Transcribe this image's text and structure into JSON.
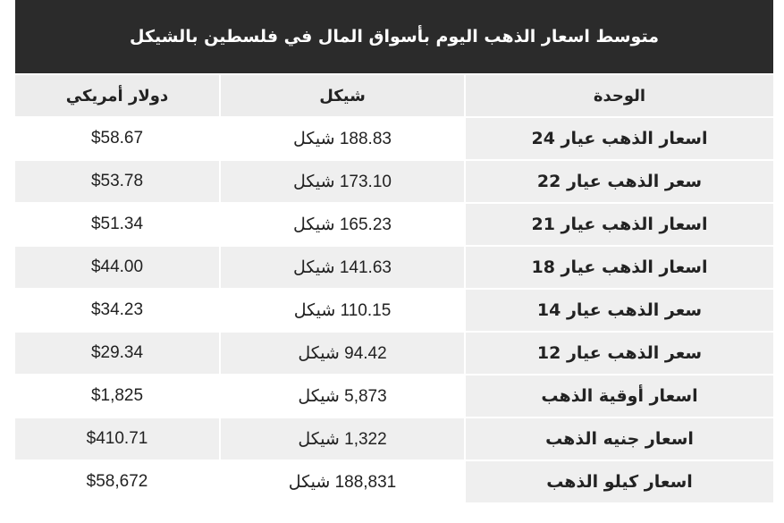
{
  "title": "متوسط اسعار الذهب اليوم بأسواق المال في فلسطين بالشيكل",
  "headers": {
    "unit": "الوحدة",
    "shekel": "شيكل",
    "usd": "دولار أمريكي"
  },
  "rows": [
    {
      "unit": "اسعار الذهب عيار 24",
      "shekel": "188.83 شيكل",
      "usd": "$58.67"
    },
    {
      "unit": "سعر الذهب عيار 22",
      "shekel": "173.10 شيكل",
      "usd": "$53.78"
    },
    {
      "unit": "اسعار الذهب عيار 21",
      "shekel": "165.23 شيكل",
      "usd": "$51.34"
    },
    {
      "unit": "اسعار الذهب عيار 18",
      "shekel": "141.63 شيكل",
      "usd": "$44.00"
    },
    {
      "unit": "سعر الذهب عيار 14",
      "shekel": "110.15 شيكل",
      "usd": "$34.23"
    },
    {
      "unit": "سعر الذهب عيار 12",
      "shekel": "94.42 شيكل",
      "usd": "$29.34"
    },
    {
      "unit": "اسعار أوقية الذهب",
      "shekel": "5,873 شيكل",
      "usd": "$1,825"
    },
    {
      "unit": "اسعار جنيه الذهب",
      "shekel": "1,322 شيكل",
      "usd": "$410.71"
    },
    {
      "unit": "اسعار كيلو الذهب",
      "shekel": "188,831 شيكل",
      "usd": "$58,672"
    }
  ]
}
